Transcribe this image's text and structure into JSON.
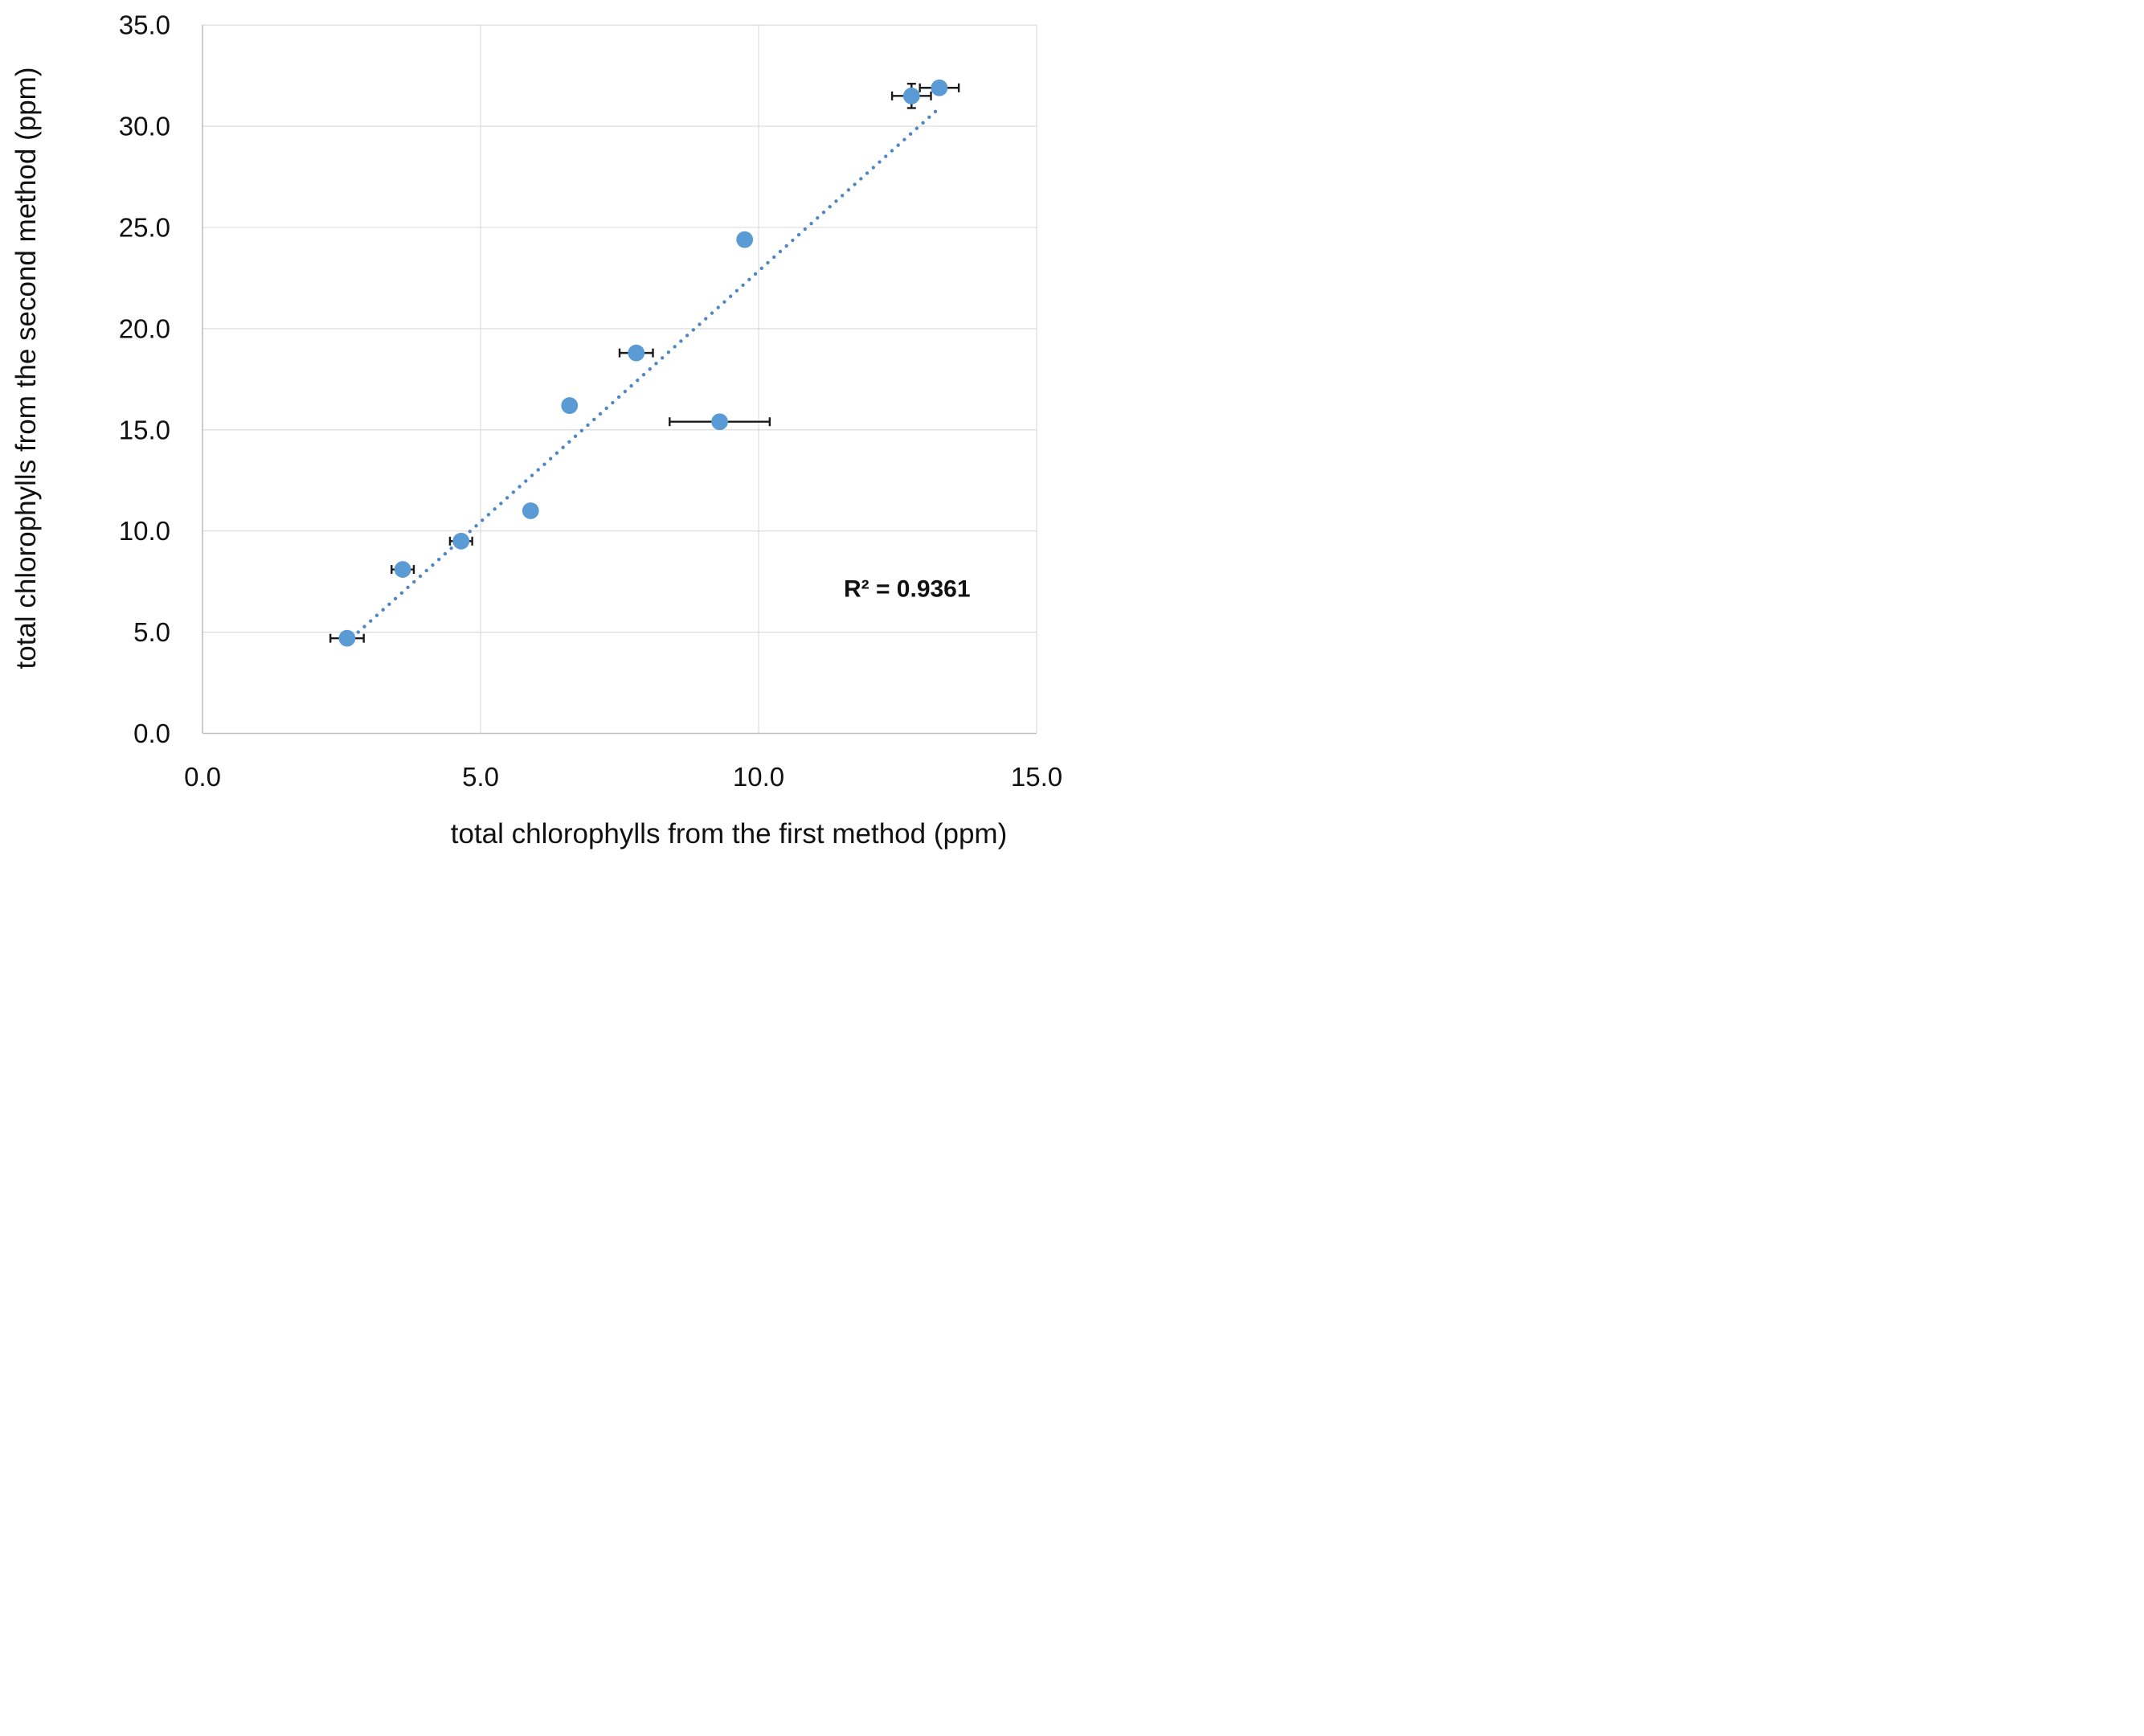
{
  "chart_data": {
    "type": "scatter",
    "title": "",
    "xlabel": "total chlorophylls from the first method (ppm)",
    "ylabel": "total chlorophylls from the second method (ppm)",
    "xlim": [
      0,
      15
    ],
    "ylim": [
      0,
      35
    ],
    "x_tick_values": [
      0,
      5,
      10,
      15
    ],
    "x_tick_labels": [
      "0.0",
      "5.0",
      "10.0",
      "15.0"
    ],
    "y_tick_values": [
      0,
      5,
      10,
      15,
      20,
      25,
      30,
      35
    ],
    "y_tick_labels": [
      "0.0",
      "5.0",
      "10.0",
      "15.0",
      "20.0",
      "25.0",
      "30.0",
      "35.0"
    ],
    "grid": true,
    "legend": false,
    "annotation": "R² = 0.9361",
    "r_squared": 0.9361,
    "annotation_pos": {
      "x": 12.67,
      "y": 7.17
    },
    "series": [
      {
        "name": "total chlorophylls",
        "marker": "circle",
        "marker_color": "#5B9BD5",
        "points": [
          {
            "x": 2.6,
            "y": 4.7,
            "xerr": 0.3
          },
          {
            "x": 3.6,
            "y": 8.1,
            "xerr": 0.2
          },
          {
            "x": 4.65,
            "y": 9.5,
            "xerr": 0.2
          },
          {
            "x": 5.9,
            "y": 11.0
          },
          {
            "x": 6.6,
            "y": 16.2
          },
          {
            "x": 7.8,
            "y": 18.8,
            "xerr": 0.3
          },
          {
            "x": 9.3,
            "y": 15.4,
            "xerr": 0.9
          },
          {
            "x": 9.75,
            "y": 24.4
          },
          {
            "x": 12.75,
            "y": 31.5,
            "xerr": 0.35,
            "yerr": 0.6
          },
          {
            "x": 13.25,
            "y": 31.9,
            "xerr": 0.35
          }
        ]
      }
    ],
    "trendline": {
      "style": "dotted",
      "color": "#4F87C5",
      "x_start": 2.8,
      "y_start": 5.0,
      "x_end": 13.25,
      "y_end": 30.9
    },
    "colors": {
      "marker": "#5B9BD5",
      "trendline": "#4F87C5",
      "error_bar": "#1a1a1a",
      "gridline": "#D9D9D9",
      "axis_line": "#BFBFBF",
      "text": "#111111"
    }
  }
}
